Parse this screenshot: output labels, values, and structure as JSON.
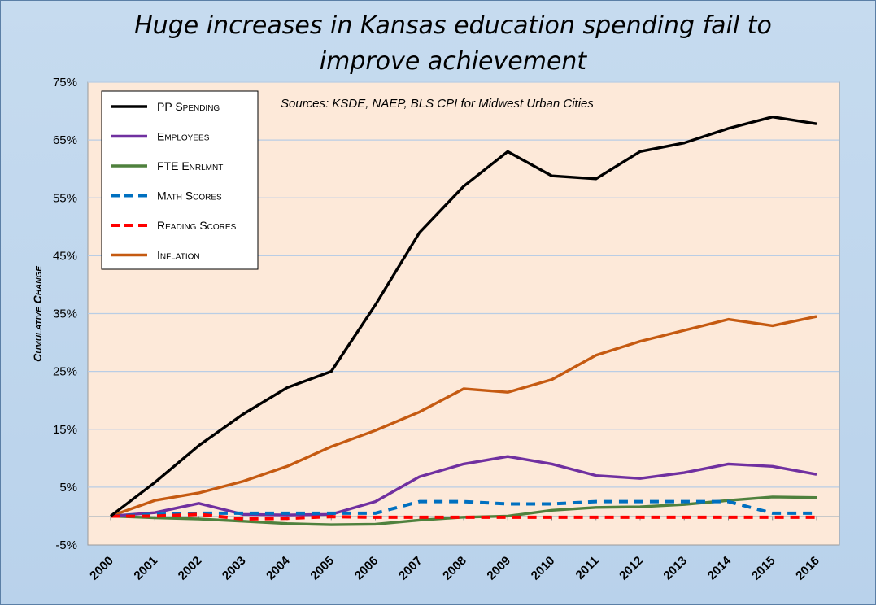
{
  "chart_data": {
    "type": "line",
    "title": "Huge increases in Kansas education spending fail to improve achievement",
    "title_lines": [
      "Huge increases in Kansas education spending fail to",
      "improve achievement"
    ],
    "ylabel": "Cumulative Change",
    "xlabel": "",
    "annotation": "Sources: KSDE, NAEP, BLS CPI for Midwest Urban Cities",
    "ylim": [
      -5,
      75
    ],
    "yticks": [
      -5,
      5,
      15,
      25,
      35,
      45,
      55,
      65,
      75
    ],
    "ytick_labels": [
      "-5%",
      "5%",
      "15%",
      "25%",
      "35%",
      "45%",
      "55%",
      "65%",
      "75%"
    ],
    "x": [
      "2000",
      "2001",
      "2002",
      "2003",
      "2004",
      "2005",
      "2006",
      "2007",
      "2008",
      "2009",
      "2010",
      "2011",
      "2012",
      "2013",
      "2014",
      "2015",
      "2016"
    ],
    "grid": "horizontal",
    "legend_position": "top-left",
    "colors": {
      "plot_background": "#fde9d9",
      "frame_background": "#c6dbef",
      "gridline": "#b9cde5"
    },
    "series": [
      {
        "name": "PP Spending",
        "color": "#000000",
        "dash": "solid",
        "values": [
          0,
          5.8,
          12.2,
          17.6,
          22.2,
          25.0,
          36.5,
          49.0,
          57.0,
          63.0,
          58.8,
          58.3,
          63.0,
          64.5,
          67.0,
          69.0,
          67.8
        ]
      },
      {
        "name": "Employees",
        "color": "#7030a0",
        "dash": "solid",
        "values": [
          0,
          0.6,
          2.2,
          0.3,
          0.2,
          0.3,
          2.5,
          6.8,
          9.0,
          10.3,
          9.0,
          7.0,
          6.5,
          7.5,
          9.0,
          8.6,
          7.2
        ]
      },
      {
        "name": "FTE Enrlmnt",
        "color": "#4f813d",
        "dash": "solid",
        "values": [
          0,
          -0.3,
          -0.5,
          -0.9,
          -1.3,
          -1.5,
          -1.4,
          -0.7,
          -0.2,
          0.0,
          1.0,
          1.5,
          1.6,
          2.0,
          2.7,
          3.3,
          3.2
        ]
      },
      {
        "name": "Math Scores",
        "color": "#0070c0",
        "dash": "dashed",
        "values": [
          0,
          0.3,
          0.5,
          0.5,
          0.5,
          0.5,
          0.5,
          2.5,
          2.5,
          2.1,
          2.1,
          2.5,
          2.5,
          2.5,
          2.5,
          0.5,
          0.5
        ]
      },
      {
        "name": "Reading Scores",
        "color": "#ff0000",
        "dash": "dashed",
        "values": [
          0,
          0.0,
          0.3,
          -0.5,
          -0.4,
          -0.1,
          -0.2,
          -0.2,
          -0.2,
          -0.2,
          -0.2,
          -0.2,
          -0.2,
          -0.2,
          -0.2,
          -0.2,
          -0.2
        ]
      },
      {
        "name": "Inflation",
        "color": "#c55a11",
        "dash": "solid",
        "values": [
          0,
          2.7,
          4.0,
          6.0,
          8.6,
          12.0,
          14.8,
          18.0,
          22.0,
          21.4,
          23.6,
          27.8,
          30.2,
          32.1,
          34.0,
          32.9,
          34.5
        ]
      }
    ]
  }
}
